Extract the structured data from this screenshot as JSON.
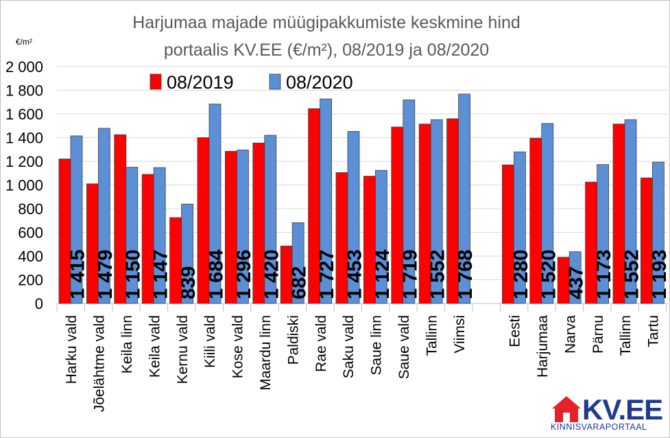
{
  "chart_data": {
    "type": "bar",
    "title": "Harjumaa majade müügipakkumiste keskmine hind",
    "subtitle": "portaalis KV.EE (€/m²), 08/2019 ja 08/2020",
    "unit_label": "€/m²",
    "ylim": [
      0,
      2000
    ],
    "yticks": [
      0,
      200,
      400,
      600,
      800,
      1000,
      1200,
      1400,
      1600,
      1800,
      2000
    ],
    "ytick_labels": [
      "0",
      "200",
      "400",
      "600",
      "800",
      "1 000",
      "1 200",
      "1 400",
      "1 600",
      "1 800",
      "2 000"
    ],
    "grid": true,
    "legend_position": "top",
    "groups": [
      {
        "categories": [
          "Harku vald",
          "Jõelähtme vald",
          "Keila linn",
          "Keila vald",
          "Kernu vald",
          "Kiili vald",
          "Kose vald",
          "Maardu linn",
          "Paldiski",
          "Rae vald",
          "Saku vald",
          "Saue linn",
          "Saue vald",
          "Tallinn",
          "Viimsi"
        ],
        "series": [
          {
            "name": "08/2019",
            "color": "#ff0000",
            "values": [
              1220,
              1010,
              1425,
              1090,
              725,
              1400,
              1285,
              1355,
              485,
              1645,
              1105,
              1075,
              1490,
              1515,
              1560
            ]
          },
          {
            "name": "08/2020",
            "color": "#5b8fd6",
            "values": [
              1415,
              1479,
              1150,
              1147,
              839,
              1684,
              1296,
              1420,
              682,
              1727,
              1453,
              1124,
              1719,
              1552,
              1768
            ]
          }
        ],
        "data_labels": [
          "1 415",
          "1 479",
          "1 150",
          "1 147",
          "839",
          "1 684",
          "1 296",
          "1 420",
          "682",
          "1 727",
          "1 453",
          "1 124",
          "1 719",
          "1 552",
          "1 768"
        ]
      },
      {
        "categories": [
          "Eesti",
          "Harjumaa",
          "Narva",
          "Pärnu",
          "Tallinn",
          "Tartu"
        ],
        "series": [
          {
            "name": "08/2019",
            "color": "#ff0000",
            "values": [
              1170,
              1395,
              390,
              1025,
              1515,
              1060
            ]
          },
          {
            "name": "08/2020",
            "color": "#5b8fd6",
            "values": [
              1280,
              1520,
              437,
              1173,
              1552,
              1193
            ]
          }
        ],
        "data_labels": [
          "1 280",
          "1 520",
          "437",
          "1 173",
          "1 552",
          "1 193"
        ]
      }
    ]
  },
  "logo": {
    "text": "KV.EE",
    "tagline": "KINNISVARAPORTAAL",
    "color": "#1f3a93",
    "accent": "#e8202a"
  }
}
